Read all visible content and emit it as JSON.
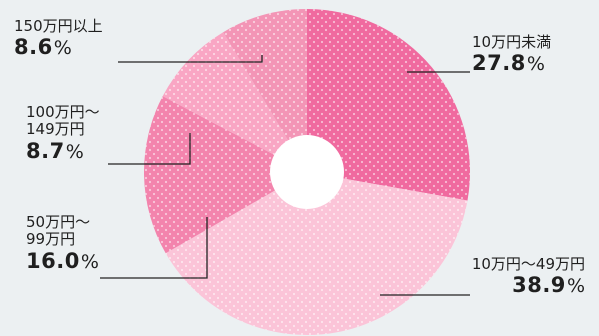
{
  "chart_data": {
    "type": "pie",
    "donut": true,
    "title": "",
    "slices": [
      {
        "label": "10万円未満",
        "value": 27.8,
        "display": "27.8",
        "unit": "%",
        "color": "#f06a9f"
      },
      {
        "label": "10万円～49万円",
        "value": 38.9,
        "display": "38.9",
        "unit": "%",
        "color": "#fbc4d8"
      },
      {
        "label": "50万円～99万円",
        "value": 16.0,
        "display": "16.0",
        "unit": "%",
        "color": "#f384ad"
      },
      {
        "label": "100万円～149万円",
        "value": 8.7,
        "display": "8.7",
        "unit": "%",
        "color": "#f9a6c4"
      },
      {
        "label": "150万円以上",
        "value": 8.6,
        "display": "8.6",
        "unit": "%",
        "color": "#f395b6"
      }
    ]
  },
  "labels": {
    "s0": {
      "line1": "10万円未満",
      "value": "27.8",
      "unit": "%"
    },
    "s1": {
      "line1": "10万円～49万円",
      "value": "38.9",
      "unit": "%"
    },
    "s2": {
      "line1": "50万円～",
      "line2": "99万円",
      "value": "16.0",
      "unit": "%"
    },
    "s3": {
      "line1": "100万円～",
      "line2": "149万円",
      "value": "8.7",
      "unit": "%"
    },
    "s4": {
      "line1": "150万円以上",
      "value": "8.6",
      "unit": "%"
    }
  }
}
